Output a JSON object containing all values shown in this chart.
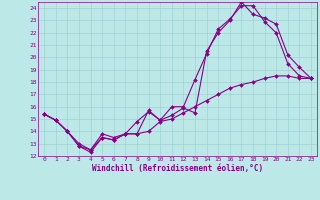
{
  "xlabel": "Windchill (Refroidissement éolien,°C)",
  "xlim": [
    -0.5,
    23.5
  ],
  "ylim": [
    12,
    24.5
  ],
  "xticks": [
    0,
    1,
    2,
    3,
    4,
    5,
    6,
    7,
    8,
    9,
    10,
    11,
    12,
    13,
    14,
    15,
    16,
    17,
    18,
    19,
    20,
    21,
    22,
    23
  ],
  "yticks": [
    12,
    13,
    14,
    15,
    16,
    17,
    18,
    19,
    20,
    21,
    22,
    23,
    24
  ],
  "bg_color": "#bde8e8",
  "line_color": "#880088",
  "line1_x": [
    0,
    1,
    2,
    3,
    4,
    5,
    6,
    7,
    8,
    9,
    10,
    11,
    12,
    13,
    14,
    15,
    16,
    17,
    18,
    19,
    20,
    21,
    22,
    23
  ],
  "line1_y": [
    15.4,
    14.9,
    14.0,
    12.8,
    12.5,
    13.8,
    13.5,
    13.8,
    13.8,
    15.7,
    14.9,
    16.0,
    16.0,
    18.2,
    20.3,
    22.3,
    23.1,
    24.2,
    24.2,
    22.9,
    22.0,
    19.5,
    18.5,
    18.3
  ],
  "line2_x": [
    0,
    1,
    2,
    3,
    4,
    5,
    6,
    7,
    8,
    9,
    10,
    11,
    12,
    13,
    14,
    15,
    16,
    17,
    18,
    19,
    20,
    21,
    22,
    23
  ],
  "line2_y": [
    15.4,
    14.9,
    14.0,
    12.8,
    12.3,
    13.5,
    13.3,
    13.8,
    14.8,
    15.6,
    14.9,
    15.3,
    15.9,
    15.5,
    20.5,
    22.0,
    23.0,
    24.5,
    23.5,
    23.2,
    22.7,
    20.2,
    19.2,
    18.3
  ],
  "line3_x": [
    0,
    1,
    2,
    3,
    4,
    5,
    6,
    7,
    8,
    9,
    10,
    11,
    12,
    13,
    14,
    15,
    16,
    17,
    18,
    19,
    20,
    21,
    22,
    23
  ],
  "line3_y": [
    15.4,
    14.9,
    14.0,
    13.0,
    12.5,
    13.5,
    13.3,
    13.8,
    13.8,
    14.0,
    14.8,
    15.0,
    15.5,
    16.0,
    16.5,
    17.0,
    17.5,
    17.8,
    18.0,
    18.3,
    18.5,
    18.5,
    18.3,
    18.3
  ],
  "marker": "D",
  "markersize": 2.0,
  "linewidth": 0.8,
  "tick_fontsize": 4.5,
  "xlabel_fontsize": 5.5,
  "grid_color": "#99cccc",
  "grid_linewidth": 0.4
}
